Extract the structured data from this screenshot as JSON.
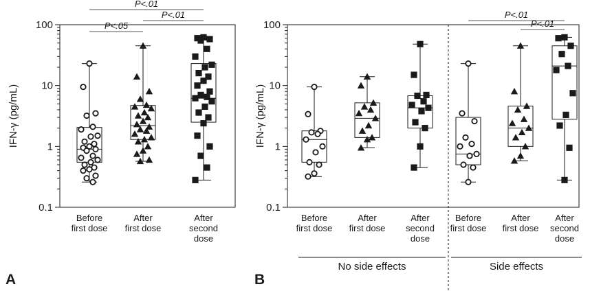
{
  "panels": {
    "a": {
      "letter": "A"
    },
    "b": {
      "letter": "B"
    }
  },
  "chart_data": [
    {
      "panel": "A",
      "type": "box",
      "scale": "log",
      "ylabel": "IFN-γ (pg/mL)",
      "ylim": [
        0.1,
        100
      ],
      "yticks": [
        {
          "value": 0.1,
          "label": "0.1"
        },
        {
          "value": 1,
          "label": "1"
        },
        {
          "value": 10,
          "label": "10"
        },
        {
          "value": 100,
          "label": "100"
        }
      ],
      "categories": [
        {
          "lines": [
            "Before",
            "first dose"
          ],
          "marker": "circle-open",
          "box": {
            "min": 0.26,
            "q1": 0.55,
            "median": 0.9,
            "q3": 2.05,
            "max": 23
          },
          "points": [
            23,
            9.5,
            3.5,
            3.2,
            2.1,
            1.9,
            1.5,
            1.45,
            1.2,
            1.1,
            1.0,
            0.95,
            0.9,
            0.85,
            0.7,
            0.65,
            0.6,
            0.55,
            0.5,
            0.45,
            0.42,
            0.4,
            0.33,
            0.3,
            0.26
          ]
        },
        {
          "lines": [
            "After",
            "first dose"
          ],
          "marker": "triangle-filled",
          "box": {
            "min": 0.57,
            "q1": 1.3,
            "median": 2.2,
            "q3": 4.7,
            "max": 45
          },
          "points": [
            45,
            14,
            8,
            6,
            4.8,
            4.5,
            4.2,
            3.6,
            3.2,
            3.0,
            2.6,
            2.3,
            2.1,
            1.9,
            1.8,
            1.6,
            1.4,
            1.3,
            1.2,
            1.0,
            0.85,
            0.75,
            0.6,
            0.57
          ]
        },
        {
          "lines": [
            "After",
            "second",
            "dose"
          ],
          "marker": "square-filled",
          "box": {
            "min": 0.28,
            "q1": 2.5,
            "median": 6.2,
            "q3": 23,
            "max": 62
          },
          "points": [
            62,
            60,
            58,
            55,
            40,
            30,
            22,
            20,
            16,
            14,
            12,
            10,
            8,
            7,
            6.5,
            6.2,
            5.5,
            4.5,
            3.6,
            3.0,
            2.4,
            1.5,
            1.0,
            0.7,
            0.45,
            0.28
          ]
        }
      ],
      "significance": [
        {
          "from": 0,
          "to": 2,
          "label": "P<.01",
          "level": 3
        },
        {
          "from": 0,
          "to": 1,
          "label": "P<.05",
          "level": 1
        },
        {
          "from": 1,
          "to": 2,
          "label": "P<.01",
          "level": 2
        }
      ]
    },
    {
      "panel": "B",
      "type": "box",
      "scale": "log",
      "ylabel": "IFN-γ (pg/mL)",
      "ylim": [
        0.1,
        100
      ],
      "yticks": [
        {
          "value": 0.1,
          "label": "0.1"
        },
        {
          "value": 1,
          "label": "1"
        },
        {
          "value": 10,
          "label": "10"
        },
        {
          "value": 100,
          "label": "100"
        }
      ],
      "groups": [
        {
          "label": "No side effects",
          "from": 0,
          "to": 2
        },
        {
          "label": "Side effects",
          "from": 3,
          "to": 5
        }
      ],
      "categories": [
        {
          "lines": [
            "Before",
            "first dose"
          ],
          "marker": "circle-open",
          "box": {
            "min": 0.32,
            "q1": 0.55,
            "median": 1.3,
            "q3": 1.8,
            "max": 9.5
          },
          "points": [
            9.5,
            3.4,
            1.8,
            1.7,
            1.6,
            1.3,
            1.0,
            0.8,
            0.55,
            0.5,
            0.36,
            0.32
          ]
        },
        {
          "lines": [
            "After",
            "first dose"
          ],
          "marker": "triangle-filled",
          "box": {
            "min": 0.95,
            "q1": 1.4,
            "median": 2.9,
            "q3": 5.2,
            "max": 14
          },
          "points": [
            14,
            10,
            5.2,
            4.5,
            4.0,
            3.5,
            2.9,
            2.2,
            1.8,
            1.4,
            1.3,
            0.95
          ]
        },
        {
          "lines": [
            "After",
            "second",
            "dose"
          ],
          "marker": "square-filled",
          "box": {
            "min": 0.45,
            "q1": 2.0,
            "median": 4.3,
            "q3": 6.8,
            "max": 48
          },
          "points": [
            48,
            15,
            7,
            6.8,
            5.5,
            4.8,
            4.3,
            3.8,
            2.5,
            2.0,
            1.0,
            0.45
          ]
        },
        {
          "lines": [
            "Before",
            "first dose"
          ],
          "marker": "circle-open",
          "box": {
            "min": 0.26,
            "q1": 0.5,
            "median": 0.75,
            "q3": 3.0,
            "max": 23
          },
          "points": [
            23,
            3.5,
            2.6,
            1.4,
            1.1,
            1.0,
            0.75,
            0.7,
            0.5,
            0.45,
            0.26
          ]
        },
        {
          "lines": [
            "After",
            "first dose"
          ],
          "marker": "triangle-filled",
          "box": {
            "min": 0.58,
            "q1": 1.0,
            "median": 2.0,
            "q3": 4.6,
            "max": 45
          },
          "points": [
            45,
            8.0,
            4.6,
            4.0,
            2.8,
            2.4,
            2.0,
            1.7,
            1.4,
            1.0,
            0.7,
            0.58
          ]
        },
        {
          "lines": [
            "After",
            "second",
            "dose"
          ],
          "marker": "square-filled",
          "box": {
            "min": 0.28,
            "q1": 2.8,
            "median": 21,
            "q3": 45,
            "max": 62
          },
          "points": [
            62,
            60,
            45,
            33,
            21,
            18,
            7.5,
            3.3,
            2.2,
            0.95,
            0.28
          ]
        }
      ],
      "significance": [
        {
          "from": 3,
          "to": 5,
          "label": "P<.01",
          "level": 2
        },
        {
          "from": 4,
          "to": 5,
          "label": "P<.01",
          "level": 1
        }
      ]
    }
  ]
}
